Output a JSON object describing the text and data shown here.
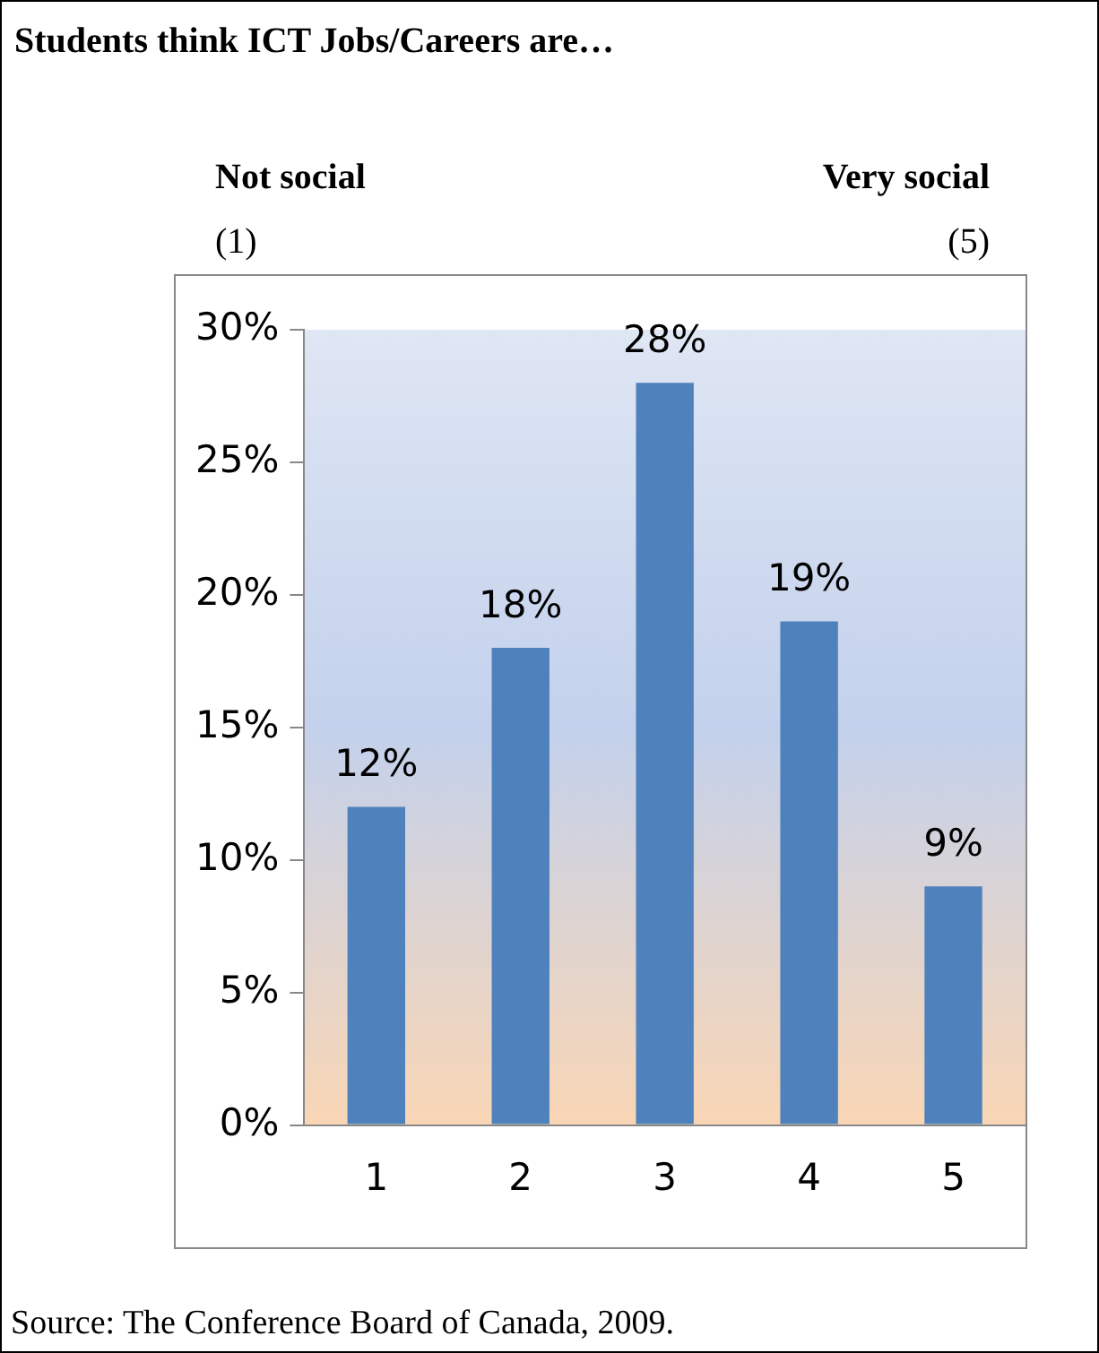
{
  "chart_data": {
    "type": "bar",
    "title": "Students think ICT Jobs/Careers are…",
    "annotations": [
      "Not social",
      "Very social",
      "(1)",
      "(5)",
      "Source: The Conference Board of Canada, 2009."
    ],
    "categories": [
      "1",
      "2",
      "3",
      "4",
      "5"
    ],
    "values": [
      12,
      18,
      28,
      19,
      9
    ],
    "value_labels": [
      "12%",
      "18%",
      "28%",
      "19%",
      "9%"
    ],
    "color": "#4f81bd",
    "ylim": [
      0,
      30
    ],
    "yticks": [
      {
        "value": 0,
        "label": "0%"
      },
      {
        "value": 5,
        "label": "5%"
      },
      {
        "value": 10,
        "label": "10%"
      },
      {
        "value": 15,
        "label": "15%"
      },
      {
        "value": 20,
        "label": "20%"
      },
      {
        "value": 25,
        "label": "25%"
      },
      {
        "value": 30,
        "label": "30%"
      }
    ],
    "grid": false,
    "legend": false
  }
}
